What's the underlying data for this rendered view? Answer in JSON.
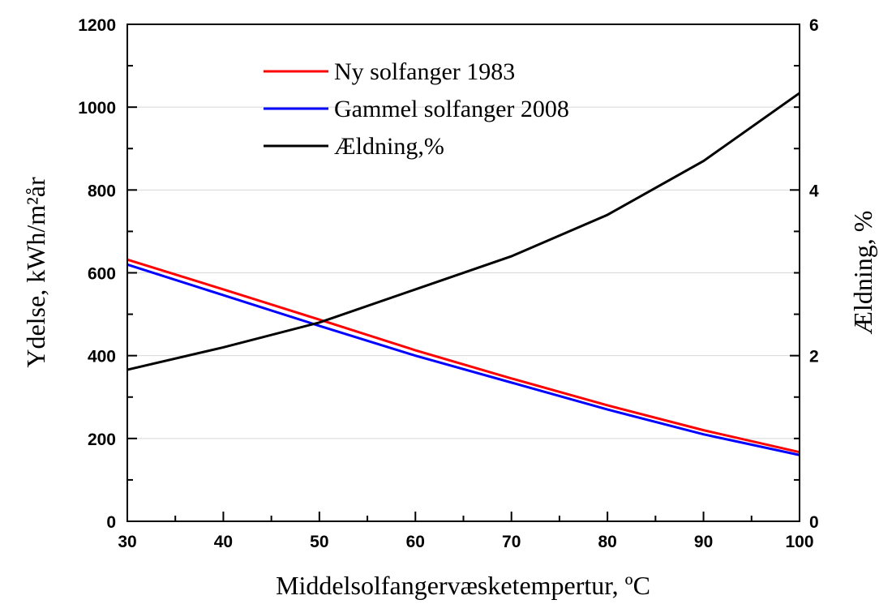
{
  "chart_data": {
    "type": "line",
    "x_label": "Middelsolfangervæsketempertur, ºC",
    "y_label": "Ydelse, kWh/m²år",
    "y2_label": "Ældning, %",
    "x": [
      30,
      40,
      50,
      60,
      70,
      80,
      90,
      100
    ],
    "series": [
      {
        "name": "Ny solfanger 1983",
        "color": "#ff0000",
        "values": [
          632,
          560,
          487,
          413,
          345,
          280,
          220,
          167
        ]
      },
      {
        "name": "Gammel solfanger 2008",
        "color": "#0000ff",
        "values": [
          620,
          546,
          472,
          400,
          335,
          270,
          210,
          160
        ]
      },
      {
        "name": "Ældning,%",
        "color": "#000000",
        "axis": "y2",
        "values": [
          1.83,
          2.1,
          2.4,
          2.8,
          3.2,
          3.7,
          4.35,
          5.17
        ]
      }
    ],
    "xlim": [
      30,
      100
    ],
    "xticks": [
      30,
      40,
      50,
      60,
      70,
      80,
      90,
      100
    ],
    "ylim": [
      0,
      1200
    ],
    "yticks": [
      0,
      200,
      400,
      600,
      800,
      1000,
      1200
    ],
    "y2lim": [
      0,
      6
    ],
    "y2ticks": [
      0,
      2,
      4,
      6
    ],
    "grid": true
  }
}
